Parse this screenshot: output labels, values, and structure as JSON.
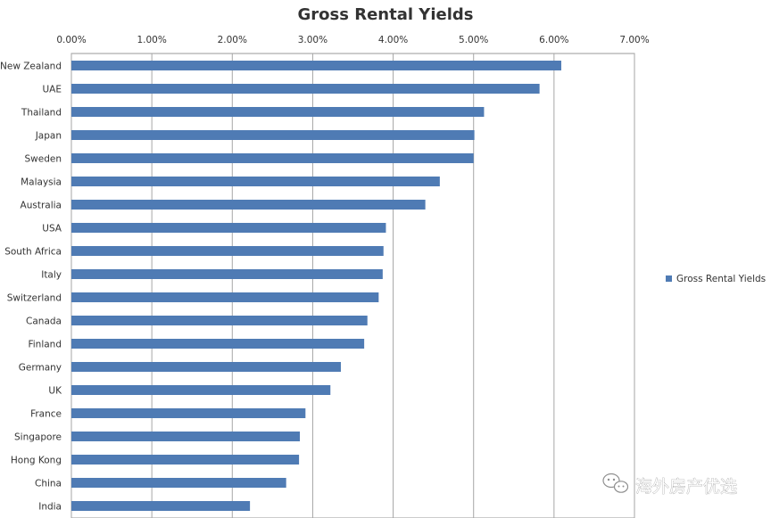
{
  "chart_data": {
    "type": "bar",
    "orientation": "horizontal",
    "title": "Gross Rental Yields",
    "xlabel": "",
    "ylabel": "",
    "xlim": [
      0,
      7
    ],
    "x_ticks": [
      0,
      1,
      2,
      3,
      4,
      5,
      6,
      7
    ],
    "x_tick_labels": [
      "0.00%",
      "1.00%",
      "2.00%",
      "3.00%",
      "4.00%",
      "5.00%",
      "6.00%",
      "7.00%"
    ],
    "x_axis_position": "top",
    "grid": "vertical major gridlines",
    "legend_position": "right",
    "categories": [
      "New Zealand",
      "UAE",
      "Thailand",
      "Japan",
      "Sweden",
      "Malaysia",
      "Australia",
      "USA",
      "South Africa",
      "Italy",
      "Switzerland",
      "Canada",
      "Finland",
      "Germany",
      "UK",
      "France",
      "Singapore",
      "Hong Kong",
      "China",
      "India"
    ],
    "series": [
      {
        "name": "Gross Rental Yields",
        "color": "#4f7bb4",
        "values": [
          6.09,
          5.82,
          5.13,
          5.01,
          5.0,
          4.58,
          4.4,
          3.91,
          3.88,
          3.87,
          3.82,
          3.68,
          3.64,
          3.35,
          3.22,
          2.91,
          2.84,
          2.83,
          2.67,
          2.22
        ]
      }
    ]
  },
  "watermark": {
    "text": "海外房产优选",
    "icon": "wechat-icon"
  }
}
